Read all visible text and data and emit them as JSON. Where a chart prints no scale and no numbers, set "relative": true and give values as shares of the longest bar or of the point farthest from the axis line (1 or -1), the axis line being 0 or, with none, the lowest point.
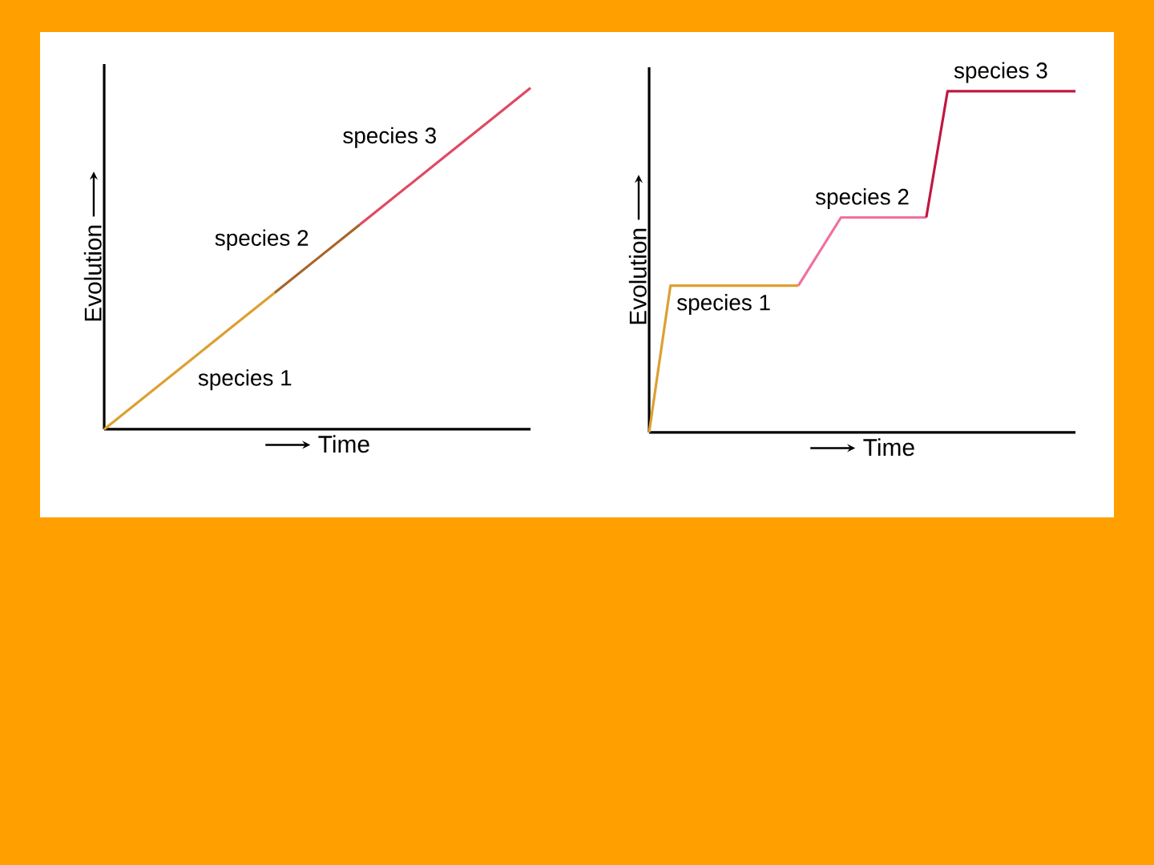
{
  "chart_data": [
    {
      "type": "line",
      "relative": true,
      "xlabel": "Time",
      "ylabel": "Evolution",
      "categories": [
        null,
        null,
        null,
        null,
        null,
        null,
        null,
        null,
        null,
        null,
        null
      ],
      "series": [
        {
          "name": "species 1",
          "color": "#dca032",
          "values": [
            0,
            0.1,
            0.2,
            0.3,
            0.4,
            null,
            null,
            null,
            null,
            null,
            null
          ]
        },
        {
          "name": "species 2",
          "color": "#a8642a",
          "values": [
            null,
            null,
            null,
            null,
            0.4,
            0.5,
            0.6,
            null,
            null,
            null,
            null
          ]
        },
        {
          "name": "species 3",
          "color": "#e04a62",
          "values": [
            null,
            null,
            null,
            null,
            null,
            null,
            0.6,
            0.7,
            0.8,
            0.9,
            1
          ]
        }
      ]
    },
    {
      "type": "line",
      "relative": true,
      "xlabel": "Time",
      "ylabel": "Evolution",
      "categories": [
        null,
        null,
        null,
        null,
        null,
        null,
        null,
        null,
        null,
        null,
        null,
        null,
        null,
        null,
        null,
        null,
        null,
        null,
        null,
        null,
        null
      ],
      "series": [
        {
          "name": "species 1",
          "color": "#dca032",
          "values": [
            0,
            0.43,
            0.43,
            0.43,
            0.43,
            0.43,
            0.43,
            0.43,
            null,
            null,
            null,
            null,
            null,
            null,
            null,
            null,
            null,
            null,
            null,
            null,
            null
          ]
        },
        {
          "name": "species 2",
          "color": "#f070a0",
          "values": [
            null,
            null,
            null,
            null,
            null,
            null,
            null,
            0.43,
            0.53,
            0.63,
            0.63,
            0.63,
            0.63,
            0.63,
            null,
            null,
            null,
            null,
            null,
            null,
            null
          ]
        },
        {
          "name": "species 3",
          "color": "#c01840",
          "values": [
            null,
            null,
            null,
            null,
            null,
            null,
            null,
            null,
            null,
            null,
            null,
            null,
            null,
            0.63,
            1,
            1,
            1,
            1,
            1,
            1,
            1
          ]
        }
      ]
    }
  ]
}
